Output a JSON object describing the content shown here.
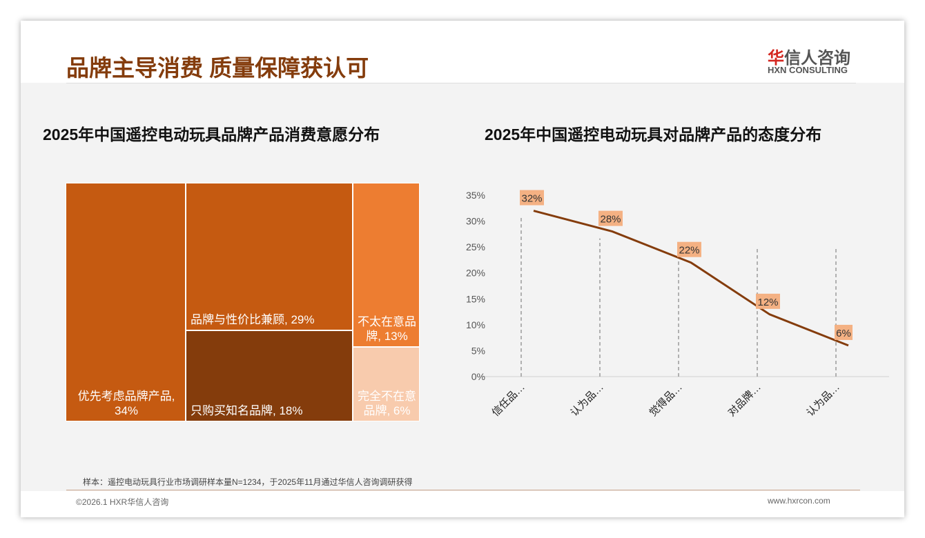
{
  "header": {
    "title": "品牌主导消费 质量保障获认可",
    "logo_cn_first": "华",
    "logo_cn_rest": "信人咨询",
    "logo_en": "HXN CONSULTING"
  },
  "chart_data": [
    {
      "type": "treemap",
      "title": "2025年中国遥控电动玩具品牌产品消费意愿分布",
      "items": [
        {
          "label": "优先考虑品牌产品, 34%",
          "value": 34,
          "color": "#C55A11"
        },
        {
          "label": "品牌与性价比兼顾, 29%",
          "value": 29,
          "color": "#C55A11"
        },
        {
          "label": "只购买知名品牌, 18%",
          "value": 18,
          "color": "#843C0C"
        },
        {
          "label": "不太在意品牌, 13%",
          "value": 13,
          "color": "#ED7D31"
        },
        {
          "label": "完全不在意品牌, 6%",
          "value": 6,
          "color": "#F8CBAD"
        }
      ]
    },
    {
      "type": "line",
      "title": "2025年中国遥控电动玩具对品牌产品的态度分布",
      "categories": [
        "信任品…",
        "认为品…",
        "觉得品…",
        "对品牌…",
        "认为品…"
      ],
      "values": [
        32,
        28,
        22,
        12,
        6
      ],
      "data_labels": [
        "32%",
        "28%",
        "22%",
        "12%",
        "6%"
      ],
      "yticks": [
        "0%",
        "5%",
        "10%",
        "15%",
        "20%",
        "25%",
        "30%",
        "35%"
      ],
      "ylim": [
        0,
        35
      ],
      "line_color": "#843C0C",
      "label_bg": "#F4B183"
    }
  ],
  "footer": {
    "note": "样本：遥控电动玩具行业市场调研样本量N=1234，于2025年11月通过华信人咨询调研获得",
    "copyright": "©2026.1 HXR华信人咨询",
    "url": "www.hxrcon.com"
  }
}
